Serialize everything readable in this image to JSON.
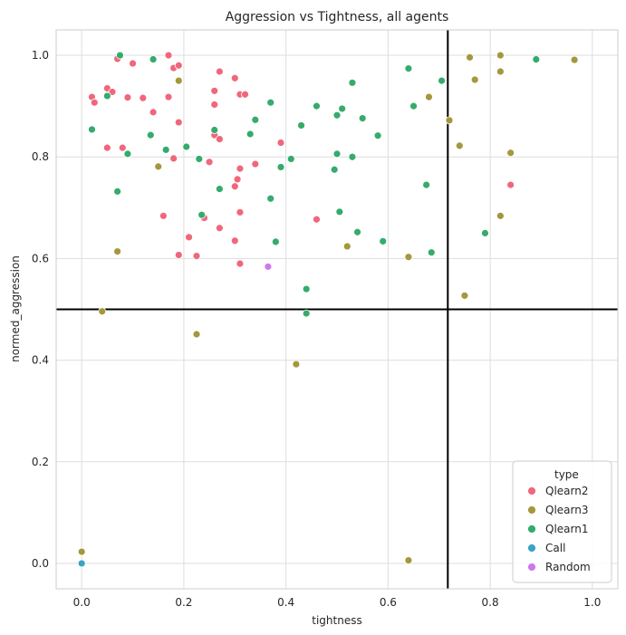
{
  "chart_data": {
    "type": "scatter",
    "title": "Aggression vs Tightness, all agents",
    "xlabel": "tightness",
    "ylabel": "normed_aggression",
    "xlim": [
      -0.05,
      1.05
    ],
    "ylim": [
      -0.05,
      1.05
    ],
    "x_ticks": [
      0.0,
      0.2,
      0.4,
      0.6,
      0.8,
      1.0
    ],
    "y_ticks": [
      0.0,
      0.2,
      0.4,
      0.6,
      0.8,
      1.0
    ],
    "x_tick_labels": [
      "0.0",
      "0.2",
      "0.4",
      "0.6",
      "0.8",
      "1.0"
    ],
    "y_tick_labels": [
      "0.0",
      "0.2",
      "0.4",
      "0.6",
      "0.8",
      "1.0"
    ],
    "grid": true,
    "legend_position": "bottom-right",
    "legend_title": "type",
    "reference_lines": {
      "vertical_x": 0.717,
      "horizontal_y": 0.5,
      "color": "#000000"
    },
    "series": [
      {
        "name": "Qlearn2",
        "color": "#f0677c",
        "points": [
          [
            0.07,
            0.993
          ],
          [
            0.17,
            1.0
          ],
          [
            0.18,
            0.975
          ],
          [
            0.19,
            0.98
          ],
          [
            0.27,
            0.968
          ],
          [
            0.3,
            0.955
          ],
          [
            0.1,
            0.984
          ],
          [
            0.02,
            0.918
          ],
          [
            0.025,
            0.907
          ],
          [
            0.05,
            0.935
          ],
          [
            0.06,
            0.928
          ],
          [
            0.09,
            0.917
          ],
          [
            0.12,
            0.916
          ],
          [
            0.17,
            0.918
          ],
          [
            0.26,
            0.93
          ],
          [
            0.26,
            0.903
          ],
          [
            0.31,
            0.923
          ],
          [
            0.32,
            0.923
          ],
          [
            0.14,
            0.888
          ],
          [
            0.19,
            0.868
          ],
          [
            0.05,
            0.818
          ],
          [
            0.08,
            0.818
          ],
          [
            0.26,
            0.843
          ],
          [
            0.27,
            0.835
          ],
          [
            0.39,
            0.828
          ],
          [
            0.18,
            0.797
          ],
          [
            0.25,
            0.789
          ],
          [
            0.25,
            0.79
          ],
          [
            0.31,
            0.777
          ],
          [
            0.34,
            0.786
          ],
          [
            0.305,
            0.756
          ],
          [
            0.3,
            0.742
          ],
          [
            0.16,
            0.684
          ],
          [
            0.24,
            0.68
          ],
          [
            0.31,
            0.691
          ],
          [
            0.46,
            0.677
          ],
          [
            0.21,
            0.642
          ],
          [
            0.27,
            0.66
          ],
          [
            0.19,
            0.607
          ],
          [
            0.225,
            0.605
          ],
          [
            0.3,
            0.635
          ],
          [
            0.31,
            0.59
          ],
          [
            0.84,
            0.745
          ]
        ]
      },
      {
        "name": "Qlearn3",
        "color": "#a5973c",
        "points": [
          [
            0.76,
            0.996
          ],
          [
            0.82,
            1.0
          ],
          [
            0.82,
            0.968
          ],
          [
            0.77,
            0.952
          ],
          [
            0.965,
            0.991
          ],
          [
            0.19,
            0.95
          ],
          [
            0.68,
            0.918
          ],
          [
            0.72,
            0.872
          ],
          [
            0.74,
            0.822
          ],
          [
            0.84,
            0.808
          ],
          [
            0.15,
            0.781
          ],
          [
            0.82,
            0.684
          ],
          [
            0.07,
            0.614
          ],
          [
            0.52,
            0.624
          ],
          [
            0.64,
            0.603
          ],
          [
            0.75,
            0.527
          ],
          [
            0.04,
            0.496
          ],
          [
            0.225,
            0.451
          ],
          [
            0.42,
            0.392
          ],
          [
            0.0,
            0.023
          ],
          [
            0.64,
            0.006
          ]
        ]
      },
      {
        "name": "Qlearn1",
        "color": "#35ab6c",
        "points": [
          [
            0.075,
            1.0
          ],
          [
            0.14,
            0.992
          ],
          [
            0.64,
            0.974
          ],
          [
            0.705,
            0.95
          ],
          [
            0.89,
            0.992
          ],
          [
            0.05,
            0.92
          ],
          [
            0.37,
            0.907
          ],
          [
            0.46,
            0.9
          ],
          [
            0.53,
            0.946
          ],
          [
            0.65,
            0.9
          ],
          [
            0.51,
            0.895
          ],
          [
            0.5,
            0.882
          ],
          [
            0.55,
            0.876
          ],
          [
            0.34,
            0.873
          ],
          [
            0.43,
            0.862
          ],
          [
            0.02,
            0.854
          ],
          [
            0.135,
            0.843
          ],
          [
            0.26,
            0.853
          ],
          [
            0.33,
            0.845
          ],
          [
            0.58,
            0.842
          ],
          [
            0.09,
            0.806
          ],
          [
            0.165,
            0.814
          ],
          [
            0.205,
            0.82
          ],
          [
            0.23,
            0.796
          ],
          [
            0.41,
            0.796
          ],
          [
            0.5,
            0.806
          ],
          [
            0.53,
            0.8
          ],
          [
            0.39,
            0.78
          ],
          [
            0.495,
            0.775
          ],
          [
            0.07,
            0.732
          ],
          [
            0.27,
            0.737
          ],
          [
            0.37,
            0.718
          ],
          [
            0.675,
            0.745
          ],
          [
            0.235,
            0.686
          ],
          [
            0.505,
            0.692
          ],
          [
            0.54,
            0.652
          ],
          [
            0.38,
            0.633
          ],
          [
            0.59,
            0.634
          ],
          [
            0.685,
            0.612
          ],
          [
            0.79,
            0.65
          ],
          [
            0.44,
            0.54
          ],
          [
            0.44,
            0.492
          ]
        ]
      },
      {
        "name": "Call",
        "color": "#3ba3c4",
        "points": [
          [
            0.0,
            0.0
          ]
        ]
      },
      {
        "name": "Random",
        "color": "#cc79f0",
        "points": [
          [
            0.365,
            0.584
          ]
        ]
      }
    ]
  }
}
